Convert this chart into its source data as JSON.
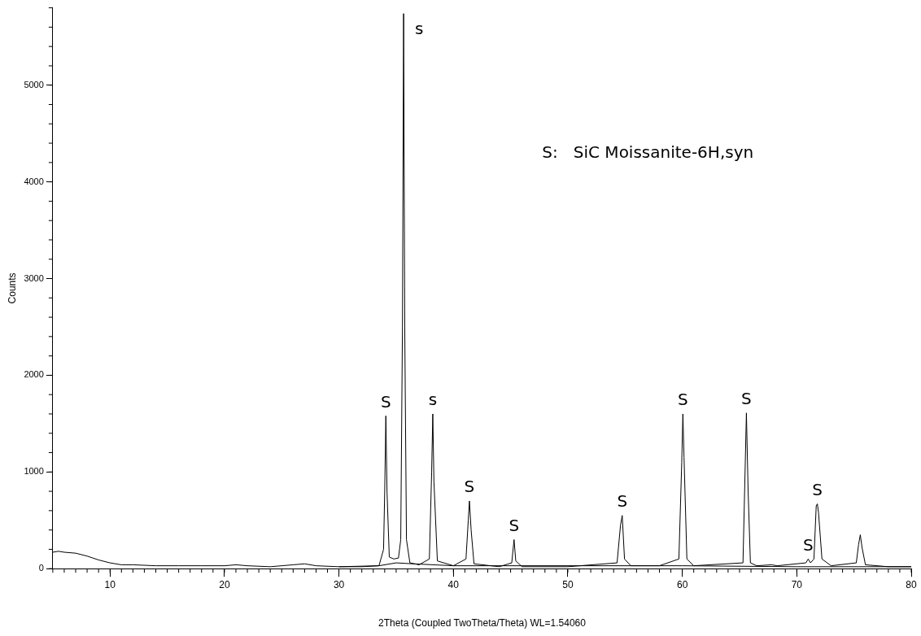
{
  "chart_data": {
    "type": "line",
    "xlabel": "2Theta (Coupled TwoTheta/Theta) WL=1.54060",
    "ylabel": "Counts",
    "xlim": [
      5,
      80
    ],
    "xticks": [
      10,
      20,
      30,
      40,
      50,
      60,
      70,
      80
    ],
    "ylim": [
      0,
      5800
    ],
    "yticks": [
      0,
      1000,
      2000,
      3000,
      4000,
      5000
    ],
    "grid": false,
    "legend": false,
    "marker": "none",
    "line_style": "solid",
    "series": [
      {
        "color": "#000000",
        "x": [
          5,
          5.5,
          6,
          7,
          8,
          9,
          10,
          11,
          12,
          14,
          16,
          18,
          20,
          21,
          22,
          24,
          25,
          26,
          27,
          28,
          30,
          32,
          33.5,
          33.9,
          34.0,
          34.1,
          34.2,
          34.4,
          34.8,
          35.2,
          35.4,
          35.55,
          35.65,
          35.75,
          35.9,
          36.2,
          37,
          37.9,
          38.1,
          38.2,
          38.3,
          38.6,
          40,
          41.1,
          41.3,
          41.4,
          41.55,
          41.8,
          44,
          45.1,
          45.3,
          45.45,
          46,
          50,
          54.3,
          54.6,
          54.75,
          54.95,
          55.5,
          58,
          59.7,
          59.95,
          60.05,
          60.15,
          60.4,
          61,
          65.3,
          65.6,
          65.75,
          65.95,
          66.5,
          67.8,
          68.3,
          70.8,
          71.0,
          71.2,
          71.5,
          71.7,
          71.8,
          71.9,
          72.2,
          73,
          75.2,
          75.4,
          75.55,
          75.7,
          76,
          78,
          80
        ],
        "values": [
          170,
          180,
          170,
          160,
          130,
          90,
          60,
          40,
          40,
          30,
          30,
          30,
          30,
          40,
          30,
          20,
          30,
          40,
          50,
          30,
          20,
          20,
          30,
          200,
          800,
          1580,
          800,
          120,
          100,
          110,
          300,
          2500,
          5740,
          2500,
          300,
          60,
          40,
          100,
          1000,
          1600,
          900,
          80,
          30,
          100,
          500,
          700,
          400,
          50,
          20,
          60,
          300,
          80,
          20,
          20,
          60,
          450,
          550,
          100,
          30,
          30,
          100,
          1100,
          1600,
          1150,
          100,
          30,
          60,
          1610,
          800,
          60,
          30,
          40,
          30,
          60,
          100,
          60,
          100,
          650,
          670,
          580,
          100,
          30,
          60,
          250,
          350,
          220,
          40,
          20,
          20
        ]
      },
      {
        "color": "#000000",
        "x": [
          30,
          33.5,
          35,
          36.5,
          40,
          50,
          60,
          70,
          80
        ],
        "values": [
          20,
          30,
          60,
          50,
          30,
          30,
          30,
          20,
          20
        ]
      }
    ],
    "annotations": [
      {
        "text": "S",
        "x": 34.1,
        "y": 1580
      },
      {
        "text": "s",
        "x": 35.65,
        "y": 5740
      },
      {
        "text": "s",
        "x": 38.2,
        "y": 1600
      },
      {
        "text": "S",
        "x": 41.4,
        "y": 700
      },
      {
        "text": "S",
        "x": 45.3,
        "y": 300
      },
      {
        "text": "S",
        "x": 54.75,
        "y": 550
      },
      {
        "text": "S",
        "x": 60.05,
        "y": 1600
      },
      {
        "text": "S",
        "x": 65.6,
        "y": 1610
      },
      {
        "text": "S",
        "x": 71.0,
        "y": 100
      },
      {
        "text": "S",
        "x": 71.8,
        "y": 670
      },
      "S:   SiC Moissanite-6H,syn"
    ]
  }
}
